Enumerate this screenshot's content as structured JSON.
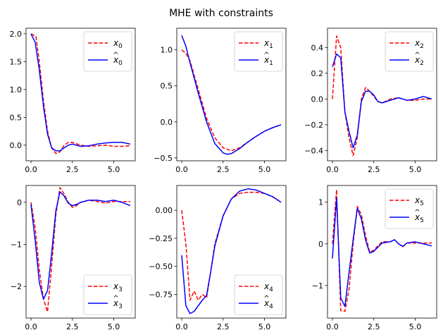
{
  "figure": {
    "title": "MHE with constraints"
  },
  "chart_data": [
    {
      "type": "line",
      "xlim": [
        -0.3,
        6.3
      ],
      "ylim": [
        -0.28,
        2.1
      ],
      "xticks": [
        0,
        2.5,
        5
      ],
      "xtick_labels": [
        "0.0",
        "2.5",
        "5.0"
      ],
      "yticks": [
        0,
        0.5,
        1,
        1.5,
        2
      ],
      "ytick_labels": [
        "0.0",
        "0.5",
        "1.0",
        "1.5",
        "2.0"
      ],
      "legend": "top-right",
      "series": [
        {
          "name": "x0",
          "color": "#ff0000",
          "style": "dashed",
          "x": [
            0,
            0.3,
            0.5,
            0.75,
            1.0,
            1.25,
            1.5,
            1.75,
            2.0,
            2.25,
            2.5,
            3.0,
            3.5,
            4.0,
            4.5,
            5.0,
            5.5,
            6.0
          ],
          "y": [
            2.0,
            1.95,
            1.5,
            0.8,
            0.25,
            -0.05,
            -0.15,
            -0.12,
            0.0,
            0.05,
            0.05,
            0.0,
            -0.02,
            -0.01,
            0.0,
            -0.02,
            -0.02,
            -0.01
          ]
        },
        {
          "name": "x̂0",
          "color": "#0000ff",
          "style": "solid",
          "x": [
            0,
            0.25,
            0.5,
            0.75,
            1.0,
            1.25,
            1.5,
            1.75,
            2.0,
            2.25,
            2.5,
            3.0,
            3.5,
            4.0,
            4.5,
            5.0,
            5.5,
            6.0
          ],
          "y": [
            2.0,
            1.85,
            1.35,
            0.7,
            0.2,
            -0.05,
            -0.1,
            -0.1,
            -0.05,
            0.0,
            0.02,
            -0.02,
            -0.01,
            0.02,
            0.04,
            0.05,
            0.05,
            0.02
          ]
        }
      ]
    },
    {
      "type": "line",
      "xlim": [
        -0.3,
        6.3
      ],
      "ylim": [
        -0.54,
        1.3
      ],
      "xticks": [
        0,
        2.5,
        5
      ],
      "xtick_labels": [
        "0.0",
        "2.5",
        "5.0"
      ],
      "yticks": [
        -0.5,
        0,
        0.5,
        1
      ],
      "ytick_labels": [
        "−0.5",
        "0.0",
        "0.5",
        "1.0"
      ],
      "legend": "top-right",
      "series": [
        {
          "name": "x1",
          "color": "#ff0000",
          "style": "dashed",
          "x": [
            0,
            0.25,
            0.5,
            1.0,
            1.5,
            2.0,
            2.5,
            3.0,
            3.5,
            4.0,
            4.5,
            5.0,
            5.5,
            6.0
          ],
          "y": [
            1.0,
            0.95,
            0.85,
            0.45,
            0.05,
            -0.22,
            -0.36,
            -0.4,
            -0.36,
            -0.28,
            -0.2,
            -0.13,
            -0.08,
            -0.04
          ]
        },
        {
          "name": "x̂1",
          "color": "#0000ff",
          "style": "solid",
          "x": [
            0,
            0.25,
            0.5,
            1.0,
            1.5,
            2.0,
            2.5,
            2.75,
            3.0,
            3.5,
            4.0,
            4.5,
            5.0,
            5.5,
            6.0
          ],
          "y": [
            1.2,
            1.05,
            0.82,
            0.4,
            0.0,
            -0.3,
            -0.43,
            -0.45,
            -0.44,
            -0.37,
            -0.28,
            -0.2,
            -0.13,
            -0.08,
            -0.04
          ]
        }
      ]
    },
    {
      "type": "line",
      "xlim": [
        -0.3,
        6.3
      ],
      "ylim": [
        -0.48,
        0.55
      ],
      "xticks": [
        0,
        2.5,
        5
      ],
      "xtick_labels": [
        "0.0",
        "2.5",
        "5.0"
      ],
      "yticks": [
        -0.4,
        -0.2,
        0,
        0.2,
        0.4
      ],
      "ytick_labels": [
        "−0.4",
        "−0.2",
        "0.0",
        "0.2",
        "0.4"
      ],
      "legend": "top-right",
      "series": [
        {
          "name": "x2",
          "color": "#ff0000",
          "style": "dashed",
          "x": [
            0,
            0.25,
            0.5,
            0.75,
            1.0,
            1.25,
            1.5,
            1.75,
            2.0,
            2.25,
            2.5,
            2.75,
            3.0,
            3.5,
            4.0,
            4.5,
            5.0,
            5.5,
            6.0
          ],
          "y": [
            0.0,
            0.49,
            0.4,
            -0.1,
            -0.3,
            -0.44,
            -0.3,
            0.0,
            0.09,
            0.06,
            0.02,
            -0.02,
            -0.03,
            0.0,
            0.01,
            -0.01,
            -0.01,
            0.0,
            0.0
          ]
        },
        {
          "name": "x̂2",
          "color": "#0000ff",
          "style": "solid",
          "x": [
            0,
            0.25,
            0.5,
            0.75,
            1.0,
            1.25,
            1.5,
            1.75,
            2.0,
            2.25,
            2.5,
            2.75,
            3.0,
            3.5,
            4.0,
            4.5,
            5.0,
            5.5,
            6.0
          ],
          "y": [
            0.25,
            0.35,
            0.32,
            -0.1,
            -0.25,
            -0.38,
            -0.28,
            -0.02,
            0.06,
            0.06,
            0.03,
            -0.02,
            -0.03,
            -0.01,
            0.01,
            -0.01,
            0.0,
            0.02,
            0.0
          ]
        }
      ]
    },
    {
      "type": "line",
      "xlim": [
        -0.3,
        6.3
      ],
      "ylim": [
        -2.75,
        0.4
      ],
      "xticks": [
        0,
        2.5,
        5
      ],
      "xtick_labels": [
        "0.0",
        "2.5",
        "5.0"
      ],
      "yticks": [
        -2,
        -1,
        0
      ],
      "ytick_labels": [
        "−2",
        "−1",
        "0"
      ],
      "legend": "lower-right",
      "series": [
        {
          "name": "x3",
          "color": "#ff0000",
          "style": "dashed",
          "x": [
            0,
            0.25,
            0.5,
            0.75,
            1.0,
            1.25,
            1.5,
            1.75,
            2.0,
            2.25,
            2.5,
            2.75,
            3.0,
            3.5,
            4.0,
            4.5,
            5.0,
            5.5,
            6.0
          ],
          "y": [
            0.0,
            -0.6,
            -1.6,
            -2.3,
            -2.6,
            -1.5,
            -0.3,
            0.35,
            0.2,
            0.0,
            -0.12,
            -0.08,
            0.0,
            0.05,
            0.02,
            -0.02,
            0.02,
            0.02,
            0.02
          ]
        },
        {
          "name": "x̂3",
          "color": "#0000ff",
          "style": "solid",
          "x": [
            0,
            0.25,
            0.5,
            0.75,
            1.0,
            1.25,
            1.5,
            1.75,
            2.0,
            2.25,
            2.5,
            2.75,
            3.0,
            3.5,
            4.0,
            4.5,
            5.0,
            5.5,
            6.0
          ],
          "y": [
            -0.05,
            -0.9,
            -1.9,
            -2.3,
            -2.1,
            -1.2,
            -0.2,
            0.25,
            0.15,
            -0.02,
            -0.08,
            -0.05,
            0.0,
            0.05,
            0.05,
            0.02,
            0.05,
            0.0,
            -0.08
          ]
        }
      ]
    },
    {
      "type": "line",
      "xlim": [
        -0.3,
        6.3
      ],
      "ylim": [
        -0.96,
        0.22
      ],
      "xticks": [
        0,
        2.5,
        5
      ],
      "xtick_labels": [
        "0.0",
        "2.5",
        "5.0"
      ],
      "yticks": [
        -0.75,
        -0.5,
        -0.25,
        0
      ],
      "ytick_labels": [
        "−0.75",
        "−0.50",
        "−0.25",
        "0.00"
      ],
      "legend": "lower-right",
      "series": [
        {
          "name": "x4",
          "color": "#ff0000",
          "style": "dashed",
          "x": [
            0,
            0.25,
            0.5,
            0.75,
            1.0,
            1.25,
            1.5,
            1.75,
            2.0,
            2.5,
            3.0,
            3.5,
            4.0,
            4.5,
            5.0,
            5.5,
            6.0
          ],
          "y": [
            0.0,
            -0.3,
            -0.8,
            -0.72,
            -0.8,
            -0.75,
            -0.78,
            -0.55,
            -0.3,
            -0.05,
            0.1,
            0.15,
            0.16,
            0.16,
            0.15,
            0.12,
            0.07
          ]
        },
        {
          "name": "x̂4",
          "color": "#0000ff",
          "style": "solid",
          "x": [
            0,
            0.25,
            0.5,
            0.75,
            1.0,
            1.25,
            1.5,
            1.75,
            2.0,
            2.5,
            3.0,
            3.5,
            4.0,
            4.5,
            5.0,
            5.5,
            6.0
          ],
          "y": [
            -0.4,
            -0.85,
            -0.92,
            -0.9,
            -0.85,
            -0.8,
            -0.76,
            -0.55,
            -0.32,
            -0.05,
            0.1,
            0.17,
            0.19,
            0.18,
            0.15,
            0.12,
            0.07
          ]
        }
      ]
    },
    {
      "type": "line",
      "xlim": [
        -0.3,
        6.3
      ],
      "ylim": [
        -1.78,
        1.4
      ],
      "xticks": [
        0,
        2.5,
        5
      ],
      "xtick_labels": [
        "0.0",
        "2.5",
        "5.0"
      ],
      "yticks": [
        -1,
        0,
        1
      ],
      "ytick_labels": [
        "−1",
        "0",
        "1"
      ],
      "legend": "top-right",
      "series": [
        {
          "name": "x5",
          "color": "#ff0000",
          "style": "dashed",
          "x": [
            0,
            0.25,
            0.5,
            0.75,
            1.0,
            1.25,
            1.5,
            1.75,
            2.0,
            2.25,
            2.5,
            2.75,
            3.0,
            3.5,
            3.75,
            4.0,
            4.25,
            4.5,
            5.0,
            5.5,
            6.0
          ],
          "y": [
            0.0,
            1.3,
            -1.6,
            -1.62,
            -1.1,
            0.0,
            0.9,
            0.7,
            0.2,
            -0.2,
            -0.15,
            -0.05,
            0.05,
            0.05,
            0.1,
            0.0,
            -0.07,
            0.02,
            0.02,
            0.02,
            0.02
          ]
        },
        {
          "name": "x̂5",
          "color": "#0000ff",
          "style": "solid",
          "x": [
            0,
            0.25,
            0.5,
            0.75,
            1.0,
            1.25,
            1.5,
            1.75,
            2.0,
            2.25,
            2.5,
            2.75,
            3.0,
            3.5,
            3.75,
            4.0,
            4.25,
            4.5,
            5.0,
            5.5,
            6.0
          ],
          "y": [
            -0.35,
            1.1,
            -1.3,
            -1.5,
            -0.7,
            0.1,
            0.85,
            0.6,
            0.1,
            -0.22,
            -0.18,
            -0.08,
            0.02,
            0.05,
            0.1,
            0.0,
            -0.06,
            0.02,
            0.05,
            0.0,
            -0.05
          ]
        }
      ]
    }
  ]
}
